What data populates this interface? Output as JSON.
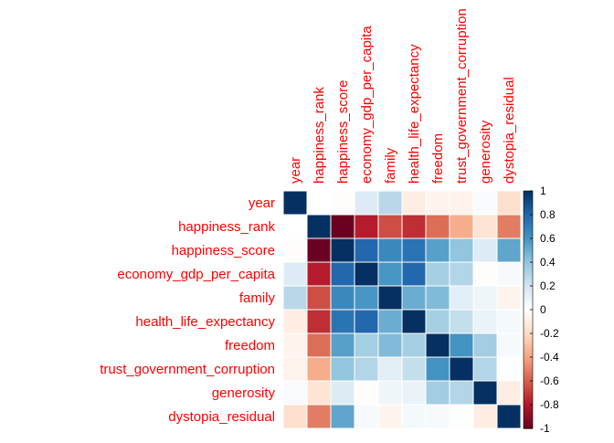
{
  "chart_data": {
    "type": "heatmap",
    "variables": [
      "year",
      "happiness_rank",
      "happiness_score",
      "economy_gdp_per_capita",
      "family",
      "health_life_expectancy",
      "freedom",
      "trust_government_corruption",
      "generosity",
      "dystopia_residual"
    ],
    "matrix": [
      [
        1.0,
        0.0,
        -0.01,
        0.15,
        0.28,
        -0.1,
        -0.06,
        -0.07,
        0.03,
        -0.18
      ],
      [
        0.0,
        1.0,
        -0.99,
        -0.79,
        -0.65,
        -0.74,
        -0.56,
        -0.37,
        -0.15,
        -0.52
      ],
      [
        -0.01,
        -0.99,
        1.0,
        0.79,
        0.65,
        0.74,
        0.55,
        0.4,
        0.15,
        0.53
      ],
      [
        0.15,
        -0.79,
        0.79,
        1.0,
        0.59,
        0.79,
        0.34,
        0.3,
        -0.01,
        0.04
      ],
      [
        0.28,
        -0.65,
        0.65,
        0.59,
        1.0,
        0.5,
        0.44,
        0.13,
        0.07,
        -0.06
      ],
      [
        -0.1,
        -0.74,
        0.74,
        0.79,
        0.5,
        1.0,
        0.34,
        0.24,
        0.09,
        0.05
      ],
      [
        -0.06,
        -0.56,
        0.55,
        0.34,
        0.44,
        0.34,
        1.0,
        0.6,
        0.35,
        0.04
      ],
      [
        -0.07,
        -0.37,
        0.4,
        0.3,
        0.13,
        0.24,
        0.6,
        1.0,
        0.3,
        0.01
      ],
      [
        0.03,
        -0.15,
        0.15,
        -0.01,
        0.07,
        0.09,
        0.35,
        0.3,
        1.0,
        -0.1
      ],
      [
        -0.18,
        -0.52,
        0.53,
        0.04,
        -0.06,
        0.05,
        0.04,
        0.01,
        -0.1,
        1.0
      ]
    ],
    "colorbar": {
      "range": [
        -1,
        1
      ],
      "ticks": [
        "1",
        "0.8",
        "0.6",
        "0.4",
        "0.2",
        "0",
        "-0.2",
        "-0.4",
        "-0.6",
        "-0.8",
        "-1"
      ]
    },
    "colors": {
      "negative_extreme": "#67001f",
      "positive_extreme": "#053061",
      "label": "#ff0000",
      "grid": "#ffffff"
    }
  }
}
